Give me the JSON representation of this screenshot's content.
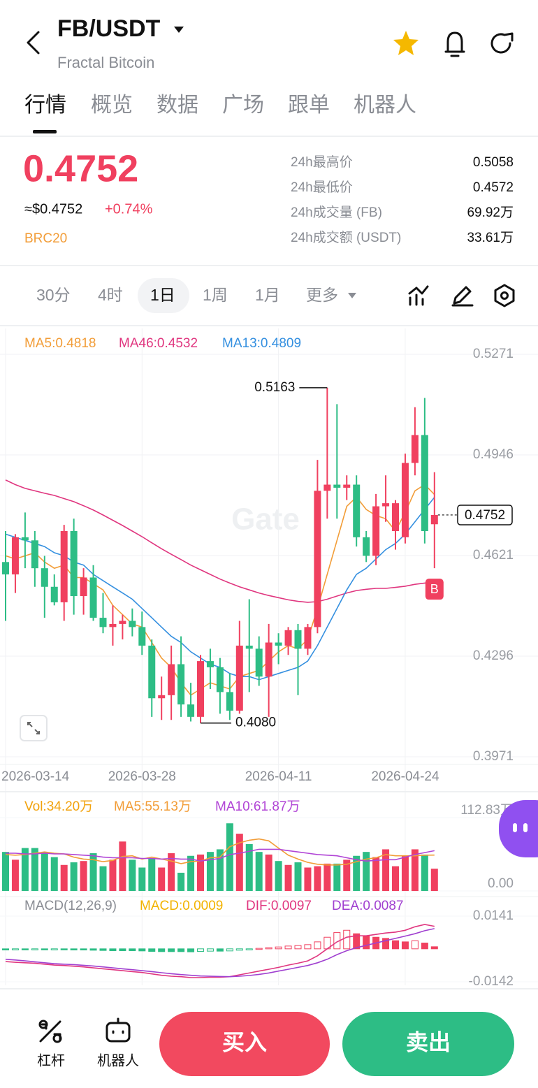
{
  "header": {
    "title": "FB/USDT",
    "subtitle": "Fractal Bitcoin"
  },
  "tabs": [
    "行情",
    "概览",
    "数据",
    "广场",
    "跟单",
    "机器人"
  ],
  "price": {
    "last": "0.4752",
    "usd": "≈$0.4752",
    "change": "+0.74%",
    "tag": "BRC20"
  },
  "stats": [
    {
      "label": "24h最高价",
      "value": "0.5058"
    },
    {
      "label": "24h最低价",
      "value": "0.4572"
    },
    {
      "label": "24h成交量 (FB)",
      "value": "69.92万"
    },
    {
      "label": "24h成交额 (USDT)",
      "value": "33.61万"
    }
  ],
  "timeframes": [
    "30分",
    "4时",
    "1日",
    "1周",
    "1月",
    "更多"
  ],
  "watermark": "Gate",
  "chart_data": [
    {
      "type": "candlestick",
      "up_color": "#f0405f",
      "down_color": "#2dbd85",
      "categories": [
        "2026-03-14",
        null,
        null,
        null,
        null,
        null,
        null,
        null,
        null,
        null,
        null,
        null,
        null,
        null,
        "2026-03-28",
        null,
        null,
        null,
        null,
        null,
        null,
        null,
        null,
        null,
        null,
        null,
        null,
        null,
        "2026-04-11",
        null,
        null,
        null,
        null,
        null,
        null,
        null,
        null,
        null,
        null,
        null,
        null,
        "2026-04-24",
        null,
        null,
        null
      ],
      "open": [
        0.46,
        0.456,
        0.468,
        0.467,
        0.458,
        0.452,
        0.447,
        0.47,
        0.449,
        0.455,
        0.442,
        0.439,
        0.44,
        0.441,
        0.439,
        0.433,
        0.416,
        0.417,
        0.427,
        0.414,
        0.41,
        0.428,
        0.426,
        0.418,
        0.412,
        0.433,
        0.432,
        0.423,
        0.434,
        0.433,
        0.438,
        0.432,
        0.439,
        0.483,
        0.485,
        0.484,
        0.485,
        0.468,
        0.462,
        0.478,
        0.47,
        0.468,
        0.492,
        0.501,
        0.4722
      ],
      "high": [
        0.47,
        0.469,
        0.476,
        0.47,
        0.462,
        0.456,
        0.472,
        0.474,
        0.458,
        0.459,
        0.45,
        0.446,
        0.443,
        0.445,
        0.444,
        0.435,
        0.423,
        0.433,
        0.436,
        0.421,
        0.43,
        0.432,
        0.429,
        0.424,
        0.441,
        0.448,
        0.436,
        0.44,
        0.437,
        0.439,
        0.44,
        0.44,
        0.493,
        0.5163,
        0.511,
        0.488,
        0.488,
        0.47,
        0.482,
        0.488,
        0.48,
        0.495,
        0.51,
        0.513,
        0.489
      ],
      "low": [
        0.441,
        0.45,
        0.458,
        0.452,
        0.442,
        0.446,
        0.441,
        0.443,
        0.443,
        0.441,
        0.437,
        0.433,
        0.435,
        0.436,
        0.43,
        0.41,
        0.409,
        0.409,
        0.41,
        0.4085,
        0.408,
        0.419,
        0.411,
        0.409,
        0.411,
        0.418,
        0.42,
        0.41,
        0.427,
        0.43,
        0.417,
        0.43,
        0.437,
        0.474,
        0.474,
        0.48,
        0.465,
        0.46,
        0.459,
        0.473,
        0.464,
        0.466,
        0.488,
        0.466,
        0.458
      ],
      "close": [
        0.456,
        0.468,
        0.467,
        0.458,
        0.452,
        0.447,
        0.47,
        0.449,
        0.455,
        0.442,
        0.439,
        0.44,
        0.441,
        0.439,
        0.433,
        0.416,
        0.417,
        0.427,
        0.414,
        0.41,
        0.428,
        0.426,
        0.418,
        0.412,
        0.433,
        0.432,
        0.423,
        0.434,
        0.433,
        0.438,
        0.432,
        0.439,
        0.483,
        0.485,
        0.484,
        0.485,
        0.468,
        0.462,
        0.478,
        0.479,
        0.479,
        0.492,
        0.501,
        0.47,
        0.4752
      ],
      "series": [
        {
          "name": "MA5:0.4818",
          "color": "#f29d38",
          "values": [
            0.462,
            0.461,
            0.462,
            0.463,
            0.46,
            0.458,
            0.459,
            0.455,
            0.455,
            0.453,
            0.451,
            0.446,
            0.443,
            0.44,
            0.439,
            0.434,
            0.429,
            0.426,
            0.421,
            0.417,
            0.419,
            0.421,
            0.42,
            0.419,
            0.423,
            0.424,
            0.425,
            0.428,
            0.431,
            0.433,
            0.432,
            0.435,
            0.445,
            0.456,
            0.467,
            0.478,
            0.481,
            0.477,
            0.475,
            0.474,
            0.47,
            0.476,
            0.483,
            0.485,
            0.4818
          ]
        },
        {
          "name": "MA46:0.4532",
          "color": "#e0367f",
          "values": [
            0.4865,
            0.485,
            0.4838,
            0.483,
            0.4822,
            0.4815,
            0.4805,
            0.4795,
            0.4782,
            0.4768,
            0.4752,
            0.4735,
            0.4718,
            0.47,
            0.4682,
            0.4662,
            0.4643,
            0.4625,
            0.4608,
            0.459,
            0.4575,
            0.456,
            0.4545,
            0.4532,
            0.452,
            0.451,
            0.45,
            0.4492,
            0.4485,
            0.4478,
            0.4473,
            0.447,
            0.4472,
            0.448,
            0.449,
            0.45,
            0.4508,
            0.4512,
            0.4515,
            0.4515,
            0.4518,
            0.4522,
            0.4528,
            0.4532,
            0.4532
          ]
        },
        {
          "name": "MA13:0.4809",
          "color": "#3590e0",
          "values": [
            0.469,
            0.468,
            0.467,
            0.466,
            0.465,
            0.463,
            0.462,
            0.46,
            0.459,
            0.456,
            0.454,
            0.452,
            0.45,
            0.448,
            0.445,
            0.442,
            0.439,
            0.436,
            0.434,
            0.431,
            0.429,
            0.427,
            0.426,
            0.424,
            0.423,
            0.423,
            0.422,
            0.423,
            0.424,
            0.425,
            0.426,
            0.428,
            0.433,
            0.439,
            0.445,
            0.451,
            0.456,
            0.458,
            0.461,
            0.464,
            0.466,
            0.469,
            0.473,
            0.477,
            0.4809
          ]
        }
      ],
      "ylim": [
        0.3971,
        0.5271
      ],
      "yticks": [
        0.5271,
        0.4946,
        0.4621,
        0.4296,
        0.3971
      ],
      "low_label": "0.4080",
      "last_price_label": "0.4752",
      "marker": "B"
    },
    {
      "type": "volume",
      "title": "Vol:34.20万",
      "values": [
        60,
        48,
        66,
        66,
        60,
        52,
        40,
        44,
        46,
        58,
        38,
        48,
        76,
        48,
        36,
        50,
        36,
        58,
        28,
        54,
        56,
        60,
        64,
        104,
        88,
        72,
        60,
        56,
        46,
        40,
        44,
        36,
        38,
        42,
        42,
        48,
        54,
        60,
        52,
        64,
        38,
        54,
        64,
        56,
        34.2
      ],
      "series": [
        {
          "name": "MA5:55.13万",
          "color": "#f29d38",
          "values": [
            56,
            55,
            56,
            58,
            60,
            58,
            57,
            52,
            49,
            48,
            45,
            47,
            53,
            54,
            49,
            52,
            49,
            46,
            42,
            45,
            46,
            51,
            52,
            68,
            74,
            78,
            80,
            77,
            66,
            55,
            49,
            44,
            41,
            40,
            40,
            41,
            45,
            49,
            51,
            56,
            54,
            54,
            54,
            55,
            55.13
          ]
        },
        {
          "name": "MA10:61.87万",
          "color": "#b145d6",
          "values": [
            58,
            58,
            57,
            57,
            58,
            57,
            57,
            56,
            55,
            54,
            52,
            51,
            51,
            51,
            50,
            50,
            49,
            50,
            49,
            49,
            46,
            48,
            50,
            56,
            58,
            61,
            64,
            64,
            64,
            62,
            60,
            58,
            56,
            55,
            54,
            51,
            48,
            46,
            47,
            48,
            48,
            52,
            56,
            59,
            61.87
          ]
        }
      ],
      "ylim": [
        0,
        112.83
      ],
      "yticks": [
        {
          "value": 112.83,
          "label": "112.83万"
        },
        {
          "value": 0,
          "label": "0.00"
        }
      ]
    },
    {
      "type": "macd",
      "title": "MACD(12,26,9)",
      "up_color": "#f0405f",
      "down_color": "#2dbd85",
      "histogram": {
        "name": "MACD:0.0009",
        "color": "#f2b300",
        "values": [
          -0.0005,
          -0.0004,
          -0.0004,
          -0.0003,
          -0.0004,
          -0.0003,
          -0.0004,
          -0.0005,
          -0.0005,
          -0.0006,
          -0.0007,
          -0.0008,
          -0.0008,
          -0.0008,
          -0.0009,
          -0.0011,
          -0.0012,
          -0.0012,
          -0.0012,
          -0.0013,
          -0.0011,
          -0.001,
          -0.001,
          -0.0009,
          -0.0006,
          -0.0004,
          0.0002,
          0.0005,
          0.0008,
          0.0012,
          0.0014,
          0.0018,
          0.003,
          0.005,
          0.007,
          0.008,
          0.0065,
          0.0055,
          0.005,
          0.0045,
          0.0035,
          0.003,
          0.0035,
          0.0025,
          0.0009
        ]
      },
      "series": [
        {
          "name": "DIF:0.0097",
          "color": "#e0367f",
          "values": [
            -0.0055,
            -0.0058,
            -0.006,
            -0.0062,
            -0.0066,
            -0.007,
            -0.0072,
            -0.0075,
            -0.0078,
            -0.0082,
            -0.0086,
            -0.009,
            -0.0094,
            -0.0098,
            -0.0102,
            -0.0108,
            -0.0114,
            -0.0118,
            -0.012,
            -0.0124,
            -0.0124,
            -0.0122,
            -0.0122,
            -0.012,
            -0.0112,
            -0.0104,
            -0.0096,
            -0.0088,
            -0.008,
            -0.007,
            -0.0062,
            -0.0052,
            -0.003,
            0.0,
            0.003,
            0.005,
            0.0056,
            0.0056,
            0.0062,
            0.0068,
            0.0072,
            0.008,
            0.0095,
            0.0105,
            0.0097
          ]
        },
        {
          "name": "DEA:0.0087",
          "color": "#a040d0",
          "values": [
            -0.0045,
            -0.0048,
            -0.0052,
            -0.0056,
            -0.006,
            -0.0064,
            -0.0066,
            -0.0068,
            -0.0071,
            -0.0074,
            -0.0078,
            -0.0082,
            -0.0086,
            -0.009,
            -0.0094,
            -0.0098,
            -0.0103,
            -0.0107,
            -0.0111,
            -0.0114,
            -0.0117,
            -0.0118,
            -0.0119,
            -0.012,
            -0.0118,
            -0.0115,
            -0.011,
            -0.0104,
            -0.0096,
            -0.0088,
            -0.008,
            -0.0072,
            -0.006,
            -0.0045,
            -0.0025,
            -0.0008,
            0.0005,
            0.0015,
            0.0025,
            0.0035,
            0.0045,
            0.0055,
            0.0065,
            0.0078,
            0.0087
          ]
        }
      ],
      "ylim": [
        -0.0142,
        0.0141
      ],
      "yticks": [
        0.0141,
        -0.0142
      ]
    }
  ],
  "bottom": {
    "tools": [
      "杠杆",
      "机器人"
    ],
    "buy": "买入",
    "sell": "卖出"
  }
}
